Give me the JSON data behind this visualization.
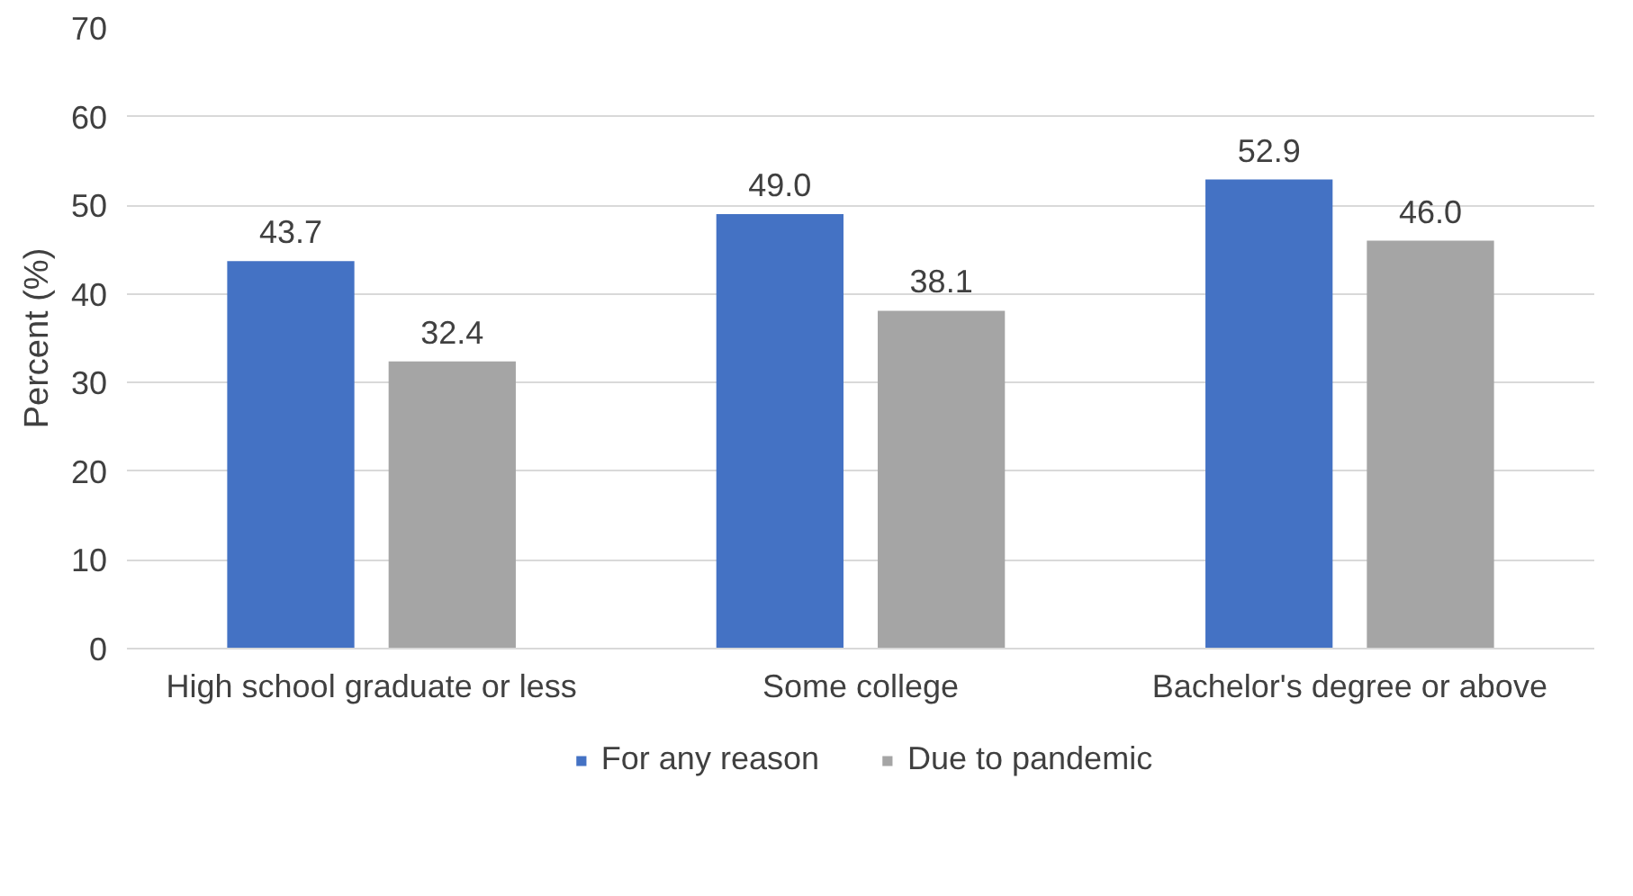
{
  "chart_data": {
    "type": "bar",
    "ylabel": "Percent (%)",
    "categories": [
      "High school graduate or less",
      "Some college",
      "Bachelor's degree or above"
    ],
    "series": [
      {
        "name": "For any reason",
        "color": "#4472c4",
        "values": [
          43.7,
          49.0,
          52.9
        ],
        "value_labels": [
          "43.7",
          "49.0",
          "52.9"
        ]
      },
      {
        "name": "Due to pandemic",
        "color": "#a5a5a5",
        "values": [
          32.4,
          38.1,
          46.0
        ],
        "value_labels": [
          "32.4",
          "38.1",
          "46.0"
        ]
      }
    ],
    "ylim": [
      0,
      70
    ],
    "yticks": [
      0,
      10,
      20,
      30,
      40,
      50,
      60,
      70
    ],
    "grid": "y",
    "legend": "bottom"
  }
}
